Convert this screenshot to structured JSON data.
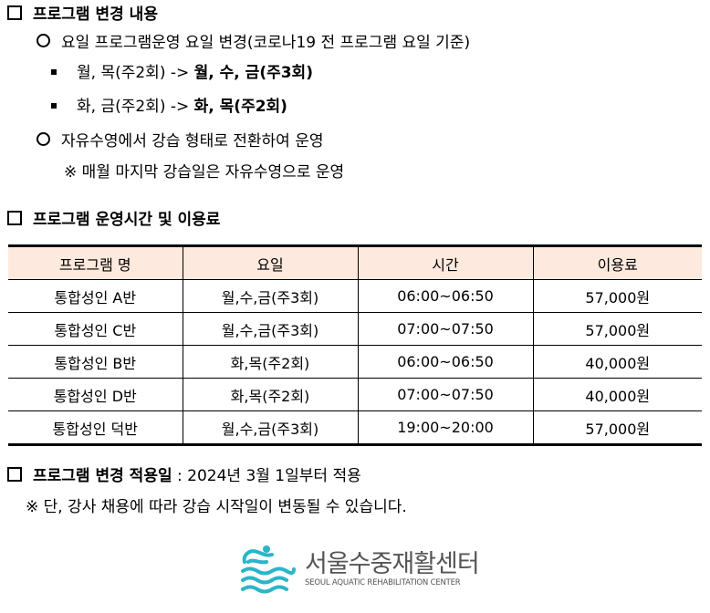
{
  "section1": {
    "title": "프로그램 변경 내용",
    "item1": "요일 프로그램운영 요일 변경(코로나19 전 프로그램 요일 기준)",
    "sub1_from": "월, 목(주2회) ->",
    "sub1_to": "월, 수, 금(주3회)",
    "sub2_from": "화, 금(주2회) ->",
    "sub2_to": "화, 목(주2회)",
    "item2": "자유수영에서 강습 형태로 전환하여 운영",
    "note": "※ 매월 마지막 강습일은 자유수영으로 운영"
  },
  "section2": {
    "title": "프로그램 운영시간 및 이용료",
    "table": {
      "headers": [
        "프로그램 명",
        "요일",
        "시간",
        "이용료"
      ],
      "rows": [
        [
          "통합성인 A반",
          "월,수,금(주3회)",
          "06:00~06:50",
          "57,000원"
        ],
        [
          "통합성인 C반",
          "월,수,금(주3회)",
          "07:00~07:50",
          "57,000원"
        ],
        [
          "통합성인 B반",
          "화,목(주2회)",
          "06:00~06:50",
          "40,000원"
        ],
        [
          "통합성인 D반",
          "화,목(주2회)",
          "07:00~07:50",
          "40,000원"
        ],
        [
          "통합성인 덕반",
          "월,수,금(주3회)",
          "19:00~20:00",
          "57,000원"
        ]
      ]
    }
  },
  "section3": {
    "title": "프로그램 변경 적용일",
    "value": " : 2024년 3월 1일부터 적용",
    "note": "※ 단, 강사 채용에 따라 강습 시작일이 변동될 수 있습니다."
  },
  "logo": {
    "name_ko": "서울수중재활센터",
    "name_en": "SEOUL AQUATIC REHABILITATION CENTER",
    "color": "#2bb5c8"
  }
}
